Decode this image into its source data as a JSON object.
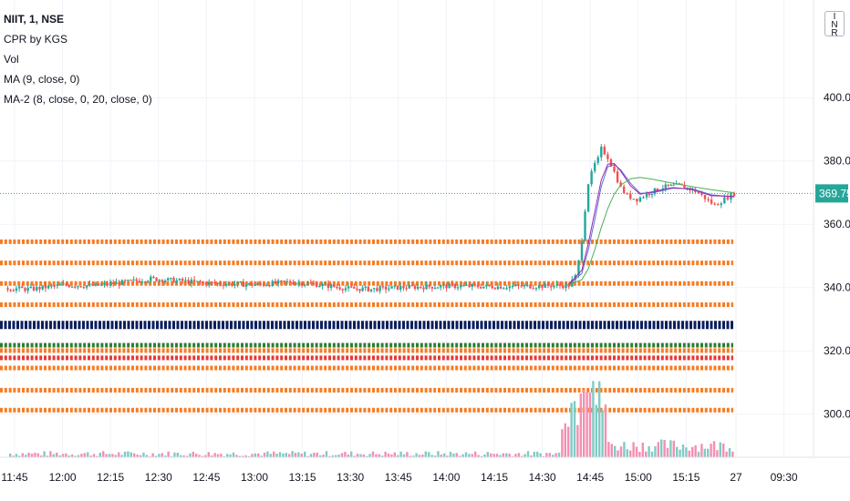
{
  "legend": {
    "symbol": "NIIT, 1, NSE",
    "cpr": "CPR by KGS",
    "vol": "Vol",
    "ma": "MA (9, close, 0)",
    "ma2": "MA-2 (8, close, 0, 20, close, 0)"
  },
  "currency_button": "INR",
  "last_price_label": "369.75",
  "chart_data": {
    "type": "line",
    "title": "",
    "time_axis": {
      "tick_labels": [
        "11:45",
        "12:00",
        "12:15",
        "12:30",
        "12:45",
        "13:00",
        "13:15",
        "13:30",
        "13:45",
        "14:00",
        "14:15",
        "14:30",
        "14:45",
        "15:00",
        "15:15",
        "27",
        "09:30"
      ]
    },
    "price_axis": {
      "tick_labels": [
        "400.00",
        "380.00",
        "360.00",
        "340.00",
        "320.00",
        "300.00"
      ],
      "ylim": [
        291,
        411
      ]
    },
    "last_price": 369.75,
    "colors": {
      "up": "#26a69a",
      "down": "#ef5350",
      "ma9": "#5b6fd6",
      "ma8": "#9c27b0",
      "ma20": "#4caf50",
      "cpr_orange": "#f57c24",
      "pivot": "#0c1f5c",
      "support_green": "#2e7d32",
      "support_red": "#e53935",
      "vol_up": "#80cbc4",
      "vol_down": "#f48fb1"
    },
    "cpr_levels": [
      {
        "price": 354.5,
        "color": "orange"
      },
      {
        "price": 347.8,
        "color": "orange"
      },
      {
        "price": 341.3,
        "color": "orange"
      },
      {
        "price": 334.6,
        "color": "orange"
      },
      {
        "price": 328.2,
        "color": "pivot"
      },
      {
        "price": 321.8,
        "color": "green"
      },
      {
        "price": 320.1,
        "color": "orange"
      },
      {
        "price": 317.8,
        "color": "red"
      },
      {
        "price": 314.6,
        "color": "orange"
      },
      {
        "price": 307.6,
        "color": "orange"
      },
      {
        "price": 301.3,
        "color": "orange"
      }
    ],
    "price_series": [
      {
        "t": "11:42",
        "p": 339.8
      },
      {
        "t": "11:50",
        "p": 339.5
      },
      {
        "t": "12:00",
        "p": 340.8
      },
      {
        "t": "12:10",
        "p": 340.6
      },
      {
        "t": "12:20",
        "p": 341.8
      },
      {
        "t": "12:27",
        "p": 342.8
      },
      {
        "t": "12:35",
        "p": 342.2
      },
      {
        "t": "12:45",
        "p": 341.4
      },
      {
        "t": "13:00",
        "p": 340.9
      },
      {
        "t": "13:10",
        "p": 341.8
      },
      {
        "t": "13:20",
        "p": 340.8
      },
      {
        "t": "13:28",
        "p": 339.7
      },
      {
        "t": "13:35",
        "p": 339.5
      },
      {
        "t": "13:45",
        "p": 340.1
      },
      {
        "t": "14:00",
        "p": 340.5
      },
      {
        "t": "14:15",
        "p": 340.3
      },
      {
        "t": "14:25",
        "p": 340.5
      },
      {
        "t": "14:36",
        "p": 340.7
      },
      {
        "t": "14:38",
        "p": 343.5
      },
      {
        "t": "14:39",
        "p": 348.2
      },
      {
        "t": "14:40",
        "p": 355.5
      },
      {
        "t": "14:41",
        "p": 364.8
      },
      {
        "t": "14:42",
        "p": 373.1
      },
      {
        "t": "14:43",
        "p": 376.0
      },
      {
        "t": "14:44",
        "p": 379.0
      },
      {
        "t": "14:45",
        "p": 380.5
      },
      {
        "t": "14:46",
        "p": 383.8
      },
      {
        "t": "14:47",
        "p": 382.6
      },
      {
        "t": "14:48",
        "p": 381.2
      },
      {
        "t": "14:50",
        "p": 376.5
      },
      {
        "t": "14:52",
        "p": 371.5
      },
      {
        "t": "14:54",
        "p": 369.0
      },
      {
        "t": "14:57",
        "p": 367.9
      },
      {
        "t": "15:00",
        "p": 369.5
      },
      {
        "t": "15:05",
        "p": 371.7
      },
      {
        "t": "15:10",
        "p": 372.3
      },
      {
        "t": "15:15",
        "p": 370.5
      },
      {
        "t": "15:18",
        "p": 368.3
      },
      {
        "t": "15:21",
        "p": 366.0
      },
      {
        "t": "15:24",
        "p": 368.0
      },
      {
        "t": "15:27",
        "p": 369.75
      }
    ],
    "ma_series": [
      {
        "name": "MA (9, close, 0)",
        "color": "ma9",
        "points": [
          {
            "t": "14:36",
            "p": 341.0
          },
          {
            "t": "14:40",
            "p": 344.5
          },
          {
            "t": "14:42",
            "p": 352.0
          },
          {
            "t": "14:44",
            "p": 361.5
          },
          {
            "t": "14:46",
            "p": 372.0
          },
          {
            "t": "14:48",
            "p": 378.2
          },
          {
            "t": "14:50",
            "p": 378.8
          },
          {
            "t": "14:52",
            "p": 377.2
          },
          {
            "t": "14:55",
            "p": 373.0
          },
          {
            "t": "14:58",
            "p": 369.8
          },
          {
            "t": "15:02",
            "p": 370.0
          },
          {
            "t": "15:08",
            "p": 371.4
          },
          {
            "t": "15:14",
            "p": 371.2
          },
          {
            "t": "15:20",
            "p": 369.3
          },
          {
            "t": "15:27",
            "p": 368.6
          }
        ]
      },
      {
        "name": "MA-2 8",
        "color": "ma8",
        "points": [
          {
            "t": "14:36",
            "p": 341.0
          },
          {
            "t": "14:40",
            "p": 345.5
          },
          {
            "t": "14:42",
            "p": 354.0
          },
          {
            "t": "14:44",
            "p": 364.0
          },
          {
            "t": "14:46",
            "p": 374.0
          },
          {
            "t": "14:48",
            "p": 379.0
          },
          {
            "t": "14:50",
            "p": 379.2
          },
          {
            "t": "14:52",
            "p": 376.8
          },
          {
            "t": "14:55",
            "p": 372.2
          },
          {
            "t": "14:58",
            "p": 369.5
          },
          {
            "t": "15:02",
            "p": 370.3
          },
          {
            "t": "15:08",
            "p": 371.6
          },
          {
            "t": "15:14",
            "p": 371.0
          },
          {
            "t": "15:20",
            "p": 369.0
          },
          {
            "t": "15:27",
            "p": 368.8
          }
        ]
      },
      {
        "name": "MA-2 20",
        "color": "ma20",
        "points": [
          {
            "t": "14:36",
            "p": 341.0
          },
          {
            "t": "14:40",
            "p": 342.5
          },
          {
            "t": "14:42",
            "p": 346.0
          },
          {
            "t": "14:44",
            "p": 352.0
          },
          {
            "t": "14:46",
            "p": 359.0
          },
          {
            "t": "14:48",
            "p": 365.0
          },
          {
            "t": "14:50",
            "p": 369.5
          },
          {
            "t": "14:52",
            "p": 372.4
          },
          {
            "t": "14:55",
            "p": 374.4
          },
          {
            "t": "14:58",
            "p": 374.8
          },
          {
            "t": "15:02",
            "p": 374.2
          },
          {
            "t": "15:08",
            "p": 373.0
          },
          {
            "t": "15:14",
            "p": 371.9
          },
          {
            "t": "15:20",
            "p": 370.9
          },
          {
            "t": "15:27",
            "p": 369.9
          }
        ]
      }
    ]
  }
}
